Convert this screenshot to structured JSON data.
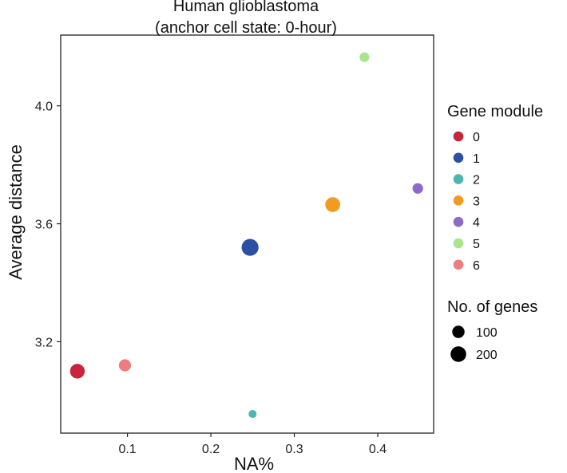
{
  "chart_data": {
    "type": "scatter",
    "title": "Human glioblastoma",
    "subtitle": "(anchor cell state: 0-hour)",
    "xlabel": "NA%",
    "ylabel": "Average distance",
    "xlim": [
      0.02,
      0.467
    ],
    "ylim": [
      2.89,
      4.24
    ],
    "xticks": [
      0.1,
      0.2,
      0.3,
      0.4
    ],
    "xtick_labels": [
      "0.1",
      "0.2",
      "0.3",
      "0.4"
    ],
    "yticks": [
      3.2,
      3.6,
      4.0
    ],
    "ytick_labels": [
      "3.2",
      "3.6",
      "4.0"
    ],
    "grid": false,
    "color_legend_title": "Gene module",
    "size_legend_title": "No. of genes",
    "size_legend": [
      {
        "label": "100",
        "value": 100
      },
      {
        "label": "200",
        "value": 200
      }
    ],
    "modules": [
      {
        "label": "0",
        "color": "#C8243C"
      },
      {
        "label": "1",
        "color": "#2B4FA2"
      },
      {
        "label": "2",
        "color": "#4BB7AE"
      },
      {
        "label": "3",
        "color": "#F39A22"
      },
      {
        "label": "4",
        "color": "#8E6AC8"
      },
      {
        "label": "5",
        "color": "#A9E58C"
      },
      {
        "label": "6",
        "color": "#EE7D82"
      }
    ],
    "points": [
      {
        "module": "0",
        "x": 0.04,
        "y": 3.1,
        "genes": 170
      },
      {
        "module": "6",
        "x": 0.097,
        "y": 3.12,
        "genes": 95
      },
      {
        "module": "1",
        "x": 0.247,
        "y": 3.52,
        "genes": 250
      },
      {
        "module": "2",
        "x": 0.25,
        "y": 2.955,
        "genes": 20
      },
      {
        "module": "3",
        "x": 0.346,
        "y": 3.665,
        "genes": 175
      },
      {
        "module": "4",
        "x": 0.448,
        "y": 3.72,
        "genes": 60
      },
      {
        "module": "5",
        "x": 0.384,
        "y": 4.165,
        "genes": 45
      }
    ]
  }
}
